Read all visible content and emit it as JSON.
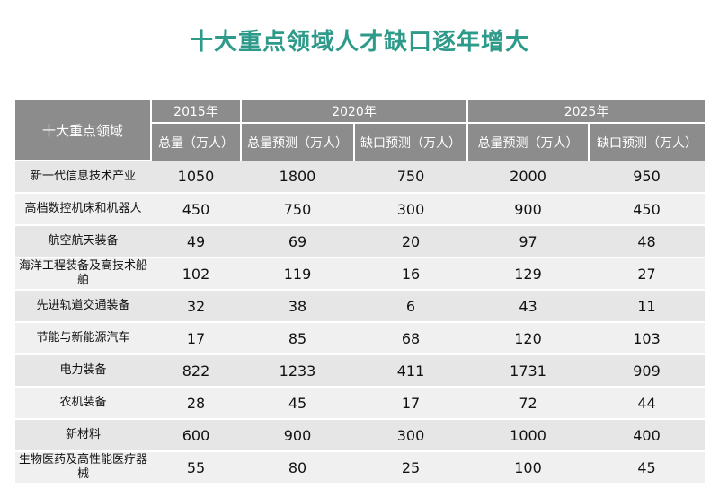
{
  "title": "十大重点领域人才缺口逐年增大",
  "chart_data": {
    "type": "table",
    "title": "十大重点领域人才缺口逐年增大",
    "row_header": "十大重点领域",
    "year_headers": [
      "2015年",
      "2020年",
      "2025年"
    ],
    "columns": [
      "总量（万人）",
      "总量预测（万人）",
      "缺口预测（万人）",
      "总量预测（万人）",
      "缺口预测（万人）"
    ],
    "rows": [
      {
        "name": "新一代信息技术产业",
        "values": [
          1050,
          1800,
          750,
          2000,
          950
        ]
      },
      {
        "name": "高档数控机床和机器人",
        "values": [
          450,
          750,
          300,
          900,
          450
        ]
      },
      {
        "name": "航空航天装备",
        "values": [
          49,
          69,
          20,
          97,
          48
        ]
      },
      {
        "name": "海洋工程装备及高技术船舶",
        "values": [
          102,
          119,
          16,
          129,
          27
        ]
      },
      {
        "name": "先进轨道交通装备",
        "values": [
          32,
          38,
          6,
          43,
          11
        ]
      },
      {
        "name": "节能与新能源汽车",
        "values": [
          17,
          85,
          68,
          120,
          103
        ]
      },
      {
        "name": "电力装备",
        "values": [
          822,
          1233,
          411,
          1731,
          909
        ]
      },
      {
        "name": "农机装备",
        "values": [
          28,
          45,
          17,
          72,
          44
        ]
      },
      {
        "name": "新材料",
        "values": [
          600,
          900,
          300,
          1000,
          400
        ]
      },
      {
        "name": "生物医药及高性能医疗器械",
        "values": [
          55,
          80,
          25,
          100,
          45
        ]
      }
    ]
  }
}
